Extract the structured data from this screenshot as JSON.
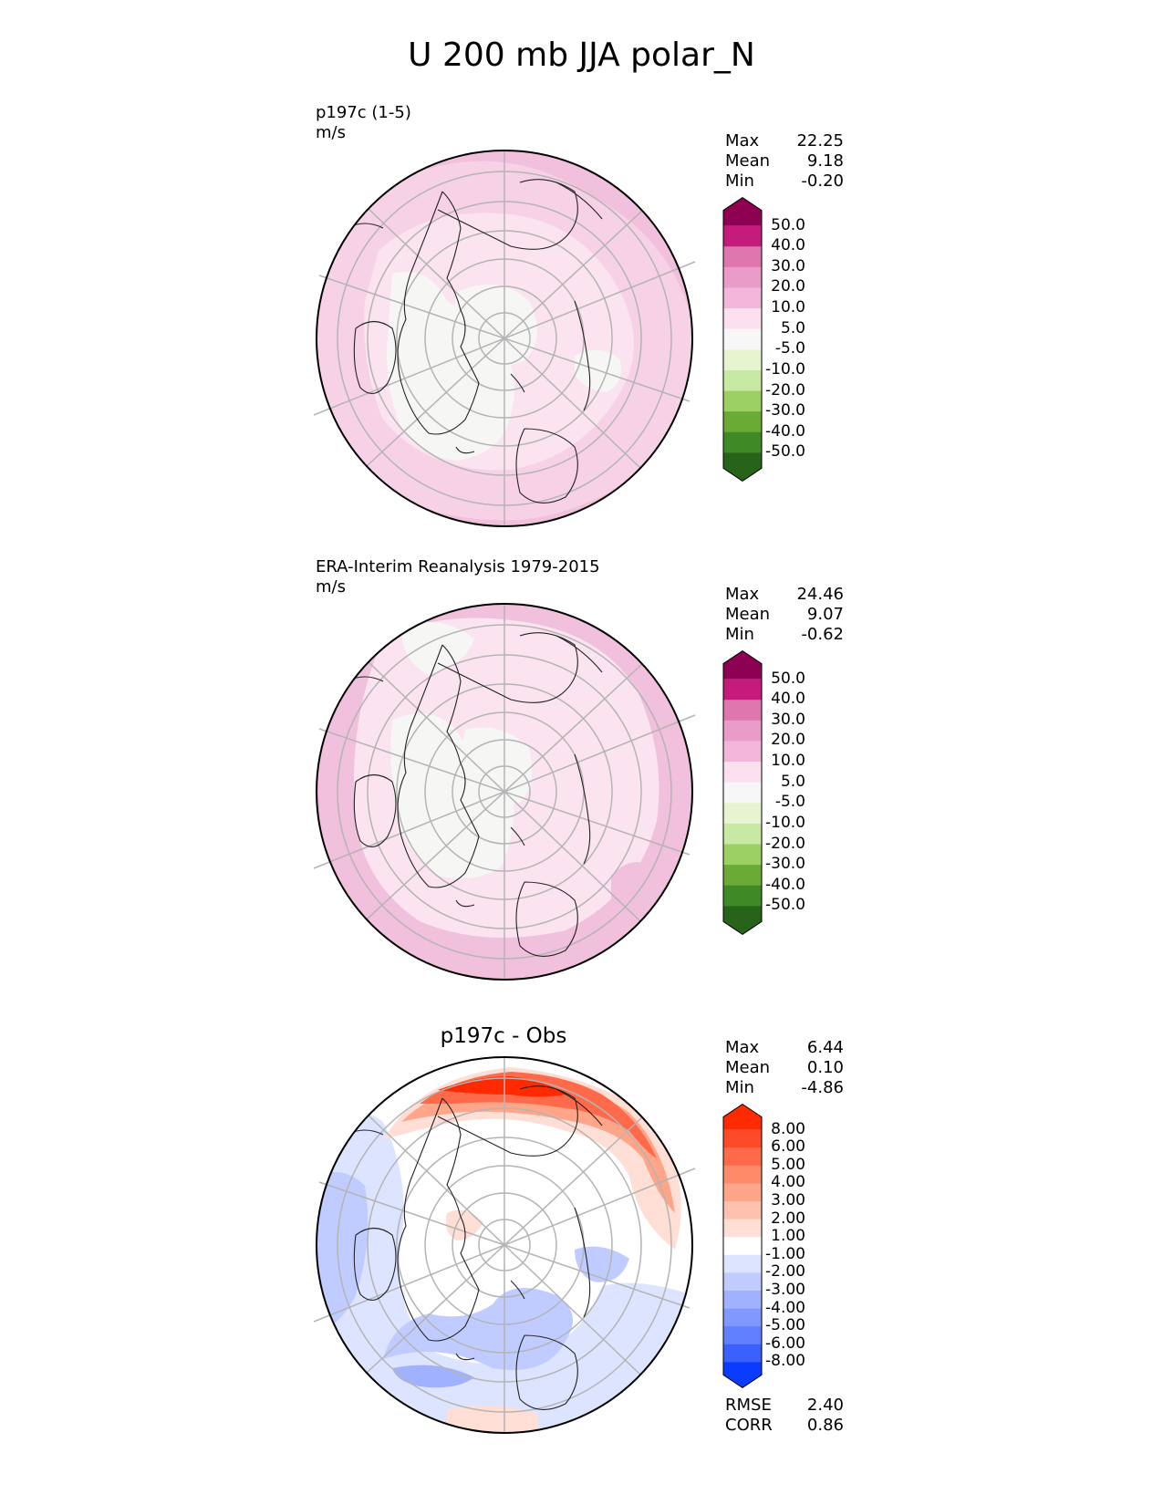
{
  "title": "U 200 mb JJA polar_N",
  "panels": [
    {
      "id": "test",
      "label": "p197c (1-5)",
      "units": "m/s",
      "stats": [
        {
          "name": "Max",
          "value": "22.25"
        },
        {
          "name": "Mean",
          "value": "9.18"
        },
        {
          "name": "Min",
          "value": "-0.20"
        }
      ],
      "colorbar": {
        "labels": [
          "50.0",
          "40.0",
          "30.0",
          "20.0",
          "10.0",
          "5.0",
          "-5.0",
          "-10.0",
          "-20.0",
          "-30.0",
          "-40.0",
          "-50.0"
        ],
        "colors": [
          "#8e0152",
          "#c51b7d",
          "#de77ae",
          "#e99cc8",
          "#f1b6da",
          "#fde0ef",
          "#f7f7f7",
          "#e6f5d0",
          "#c7e9a3",
          "#9cd065",
          "#6aaa35",
          "#3f8a26",
          "#276419"
        ]
      }
    },
    {
      "id": "ref",
      "label": "ERA-Interim Reanalysis 1979-2015",
      "units": "m/s",
      "stats": [
        {
          "name": "Max",
          "value": "24.46"
        },
        {
          "name": "Mean",
          "value": "9.07"
        },
        {
          "name": "Min",
          "value": "-0.62"
        }
      ],
      "colorbar": {
        "labels": [
          "50.0",
          "40.0",
          "30.0",
          "20.0",
          "10.0",
          "5.0",
          "-5.0",
          "-10.0",
          "-20.0",
          "-30.0",
          "-40.0",
          "-50.0"
        ],
        "colors": [
          "#8e0152",
          "#c51b7d",
          "#de77ae",
          "#e99cc8",
          "#f1b6da",
          "#fde0ef",
          "#f7f7f7",
          "#e6f5d0",
          "#c7e9a3",
          "#9cd065",
          "#6aaa35",
          "#3f8a26",
          "#276419"
        ]
      }
    },
    {
      "id": "diff",
      "label": "p197c - Obs",
      "stats": [
        {
          "name": "Max",
          "value": "6.44"
        },
        {
          "name": "Mean",
          "value": "0.10"
        },
        {
          "name": "Min",
          "value": "-4.86"
        }
      ],
      "extra_stats": [
        {
          "name": "RMSE",
          "value": "2.40"
        },
        {
          "name": "CORR",
          "value": "0.86"
        }
      ],
      "colorbar": {
        "labels": [
          "8.00",
          "6.00",
          "5.00",
          "4.00",
          "3.00",
          "2.00",
          "1.00",
          "-1.00",
          "-2.00",
          "-3.00",
          "-4.00",
          "-5.00",
          "-6.00",
          "-8.00"
        ],
        "colors": [
          "#ff2a00",
          "#ff4a2a",
          "#ff6a4a",
          "#ff8a6a",
          "#ffa58a",
          "#ffc2ae",
          "#ffdfd5",
          "#ffffff",
          "#dde4ff",
          "#c0ccff",
          "#a0b2ff",
          "#8098ff",
          "#6080ff",
          "#3a60ff",
          "#0a3cff"
        ]
      }
    }
  ],
  "chart_data": {
    "type": "heatmap",
    "projection": "north polar stereographic",
    "variable": "U",
    "level": "200 mb",
    "season": "JJA",
    "region": "polar_N",
    "units": "m/s",
    "test_stats": {
      "max": 22.25,
      "mean": 9.18,
      "min": -0.2
    },
    "ref_stats": {
      "max": 24.46,
      "mean": 9.07,
      "min": -0.62
    },
    "diff_stats": {
      "max": 6.44,
      "mean": 0.1,
      "min": -4.86,
      "rmse": 2.4,
      "corr": 0.86
    },
    "test_levels": [
      -50,
      -40,
      -30,
      -20,
      -10,
      -5,
      5,
      10,
      20,
      30,
      40,
      50
    ],
    "diff_levels": [
      -8,
      -6,
      -5,
      -4,
      -3,
      -2,
      -1,
      1,
      2,
      3,
      4,
      5,
      6,
      8
    ]
  }
}
